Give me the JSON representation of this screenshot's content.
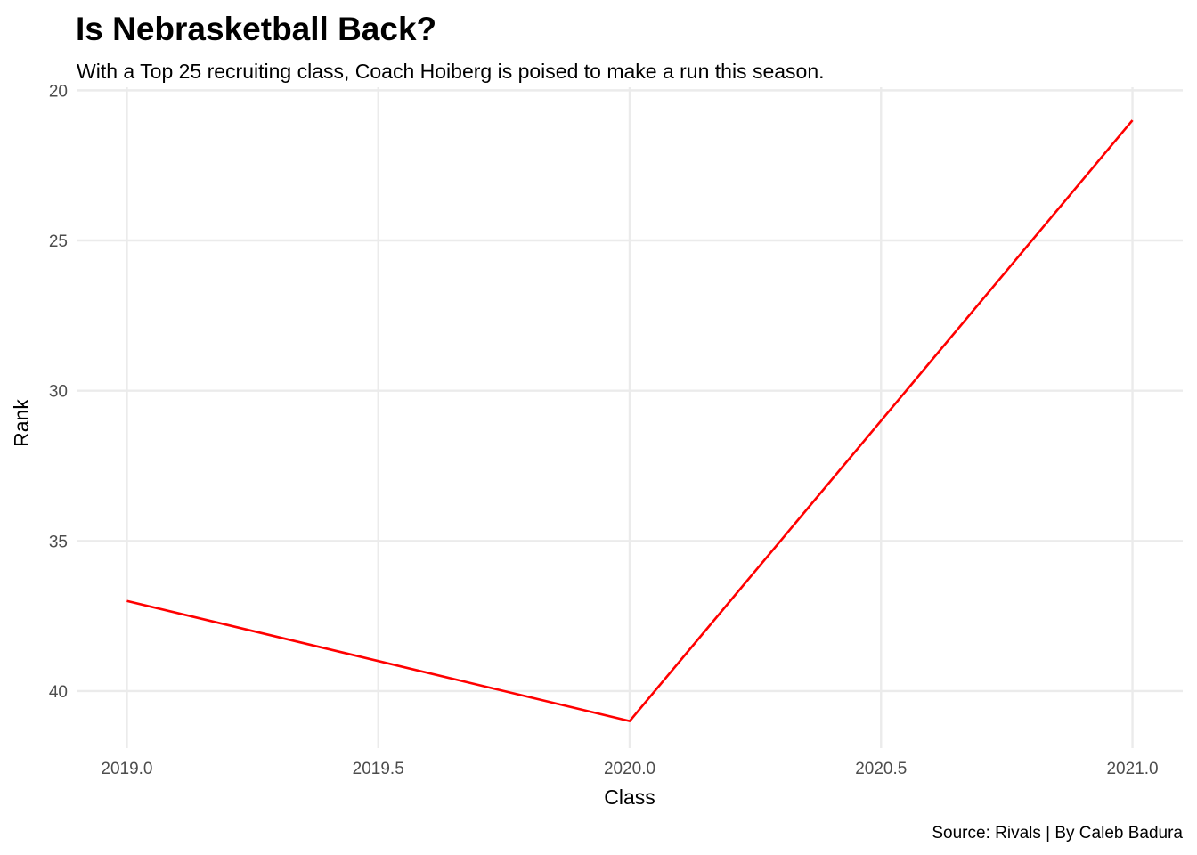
{
  "chart_data": {
    "type": "line",
    "title": "Is Nebrasketball Back?",
    "subtitle": "With a Top 25 recruiting class, Coach Hoiberg is poised to make a run this season.",
    "caption": "Source: Rivals | By Caleb Badura",
    "xlabel": "Class",
    "ylabel": "Rank",
    "x": [
      2019,
      2020,
      2021
    ],
    "series": [
      {
        "values": [
          37,
          41,
          21
        ],
        "color": "#ff0000"
      }
    ],
    "xlim": [
      2018.9,
      2021.1
    ],
    "ylim": [
      19.9,
      41.9
    ],
    "y_reversed": true,
    "x_ticks": [
      2019.0,
      2019.5,
      2020.0,
      2020.5,
      2021.0
    ],
    "x_tick_labels": [
      "2019.0",
      "2019.5",
      "2020.0",
      "2020.5",
      "2021.0"
    ],
    "y_ticks": [
      20,
      25,
      30,
      35,
      40
    ],
    "y_tick_labels": [
      "20",
      "25",
      "30",
      "35",
      "40"
    ],
    "grid": true,
    "legend": "none",
    "colors": {
      "line": "#ff0000",
      "grid": "#ebebeb",
      "background": "#ffffff"
    }
  }
}
